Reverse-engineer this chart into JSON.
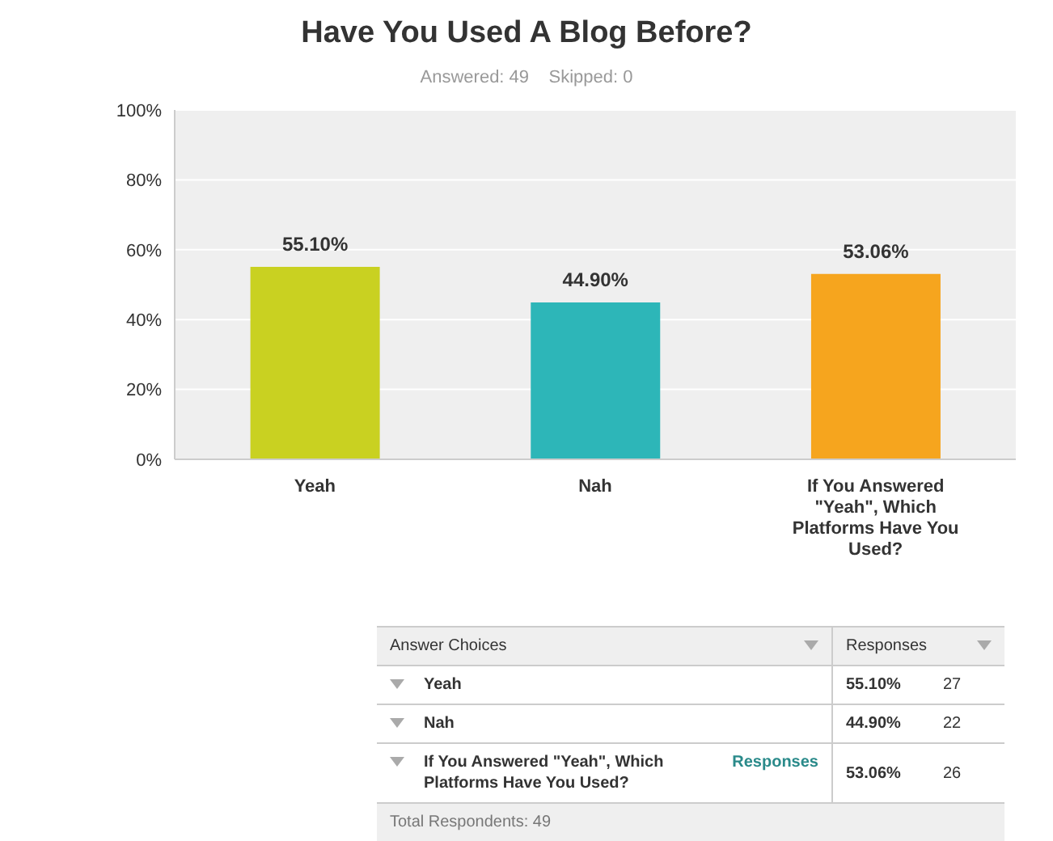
{
  "chart_data": [
    {
      "type": "bar",
      "title": "Have You Used A Blog Before?",
      "subtitle": "Answered: 49    Skipped: 0",
      "categories": [
        "Yeah",
        "Nah",
        "If You Answered \"Yeah\", Which Platforms Have You Used?"
      ],
      "values": [
        55.1,
        44.9,
        53.06
      ],
      "colors": [
        "#c9d121",
        "#2db6b8",
        "#f6a51e"
      ],
      "value_labels": [
        "55.10%",
        "44.90%",
        "53.06%"
      ],
      "ylim": [
        0,
        100
      ],
      "yticks": [
        {
          "value": 0,
          "label": "0%"
        },
        {
          "value": 20,
          "label": "20%"
        },
        {
          "value": 40,
          "label": "40%"
        },
        {
          "value": 60,
          "label": "60%"
        },
        {
          "value": 80,
          "label": "80%"
        },
        {
          "value": 100,
          "label": "100%"
        }
      ],
      "grid": "y",
      "legend": false
    },
    {
      "type": "other",
      "categories": [
        "Yeah",
        "Nah",
        "If You Answered \"Yeah\", Which Platforms Have You Used?"
      ],
      "series": [
        {
          "name": "Responses",
          "values": [
            55.1,
            44.9,
            53.06
          ],
          "value_labels": [
            "55.10%",
            "44.90%",
            "53.06%"
          ]
        },
        {
          "values": [
            27,
            22,
            26
          ]
        }
      ],
      "data_labels": true,
      "annotations": [
        "Answer Choices",
        "Responses",
        "Total Respondents: 49"
      ]
    }
  ]
}
